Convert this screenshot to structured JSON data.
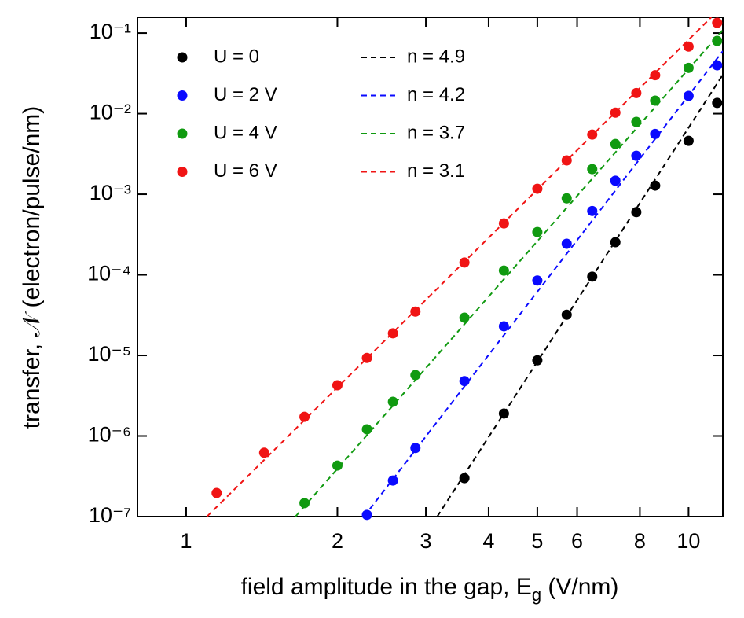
{
  "chart_data": {
    "type": "scatter",
    "xscale": "log",
    "yscale": "log",
    "xlabel": [
      "field amplitude in the gap, E",
      "g",
      " (V/nm)"
    ],
    "ylabel": "transfer, 𝒩 (electron/pulse/nm)",
    "xlim": [
      0.8,
      11.7
    ],
    "ylim": [
      1e-07,
      0.157
    ],
    "xticks": [
      1,
      2,
      3,
      4,
      5,
      6,
      8,
      10
    ],
    "yticks": [
      {
        "value": 1e-07,
        "label": "10⁻⁷"
      },
      {
        "value": 1e-06,
        "label": "10⁻⁶"
      },
      {
        "value": 1e-05,
        "label": "10⁻⁵"
      },
      {
        "value": 0.0001,
        "label": "10⁻⁴"
      },
      {
        "value": 0.001,
        "label": "10⁻³"
      },
      {
        "value": 0.01,
        "label": "10⁻²"
      },
      {
        "value": 0.1,
        "label": "10⁻¹"
      }
    ],
    "legend": "upper left",
    "x": [
      1.15,
      1.43,
      1.72,
      2.0,
      2.29,
      2.58,
      2.86,
      3.58,
      4.29,
      5.0,
      5.72,
      6.43,
      7.15,
      7.87,
      8.58,
      10.0,
      11.4
    ],
    "series": [
      {
        "name": "U = 0",
        "color": "#000000",
        "values": [
          null,
          null,
          null,
          null,
          null,
          null,
          null,
          3e-07,
          1.9e-06,
          8.7e-06,
          3.2e-05,
          9.5e-05,
          0.000254,
          0.0006,
          0.00128,
          0.0046,
          0.0136
        ]
      },
      {
        "name": "U = 2 V",
        "color": "#0a0aff",
        "values": [
          null,
          null,
          null,
          null,
          1.05e-07,
          2.8e-07,
          7.1e-07,
          4.8e-06,
          2.3e-05,
          8.5e-05,
          0.000243,
          0.00062,
          0.00147,
          0.003,
          0.0056,
          0.0166,
          0.0398
        ]
      },
      {
        "name": "U = 4 V",
        "color": "#109a10",
        "values": [
          null,
          null,
          1.47e-07,
          4.3e-07,
          1.21e-06,
          2.66e-06,
          5.7e-06,
          2.94e-05,
          0.000113,
          0.00034,
          0.00089,
          0.00205,
          0.0042,
          0.0079,
          0.0145,
          0.037,
          0.08
        ]
      },
      {
        "name": "U = 6 V",
        "color": "#f01414",
        "values": [
          1.96e-07,
          6.2e-07,
          1.73e-06,
          4.26e-06,
          9.3e-06,
          1.88e-05,
          3.5e-05,
          0.000142,
          0.000435,
          0.00117,
          0.00263,
          0.0055,
          0.0103,
          0.018,
          0.03,
          0.068,
          0.134
        ]
      }
    ],
    "fits": [
      {
        "name": "n = 4.9",
        "color": "#000000",
        "x": [
          3.16,
          11.7
        ],
        "values": [
          1e-07,
          0.0304
        ]
      },
      {
        "name": "n = 4.2",
        "color": "#0a0aff",
        "x": [
          2.26,
          11.7
        ],
        "values": [
          1e-07,
          0.0597
        ]
      },
      {
        "name": "n = 3.7",
        "color": "#109a10",
        "x": [
          1.65,
          11.7
        ],
        "values": [
          1e-07,
          0.109
        ]
      },
      {
        "name": "n = 3.1",
        "color": "#f01414",
        "x": [
          1.1,
          11.1
        ],
        "values": [
          1e-07,
          0.157
        ]
      }
    ]
  }
}
